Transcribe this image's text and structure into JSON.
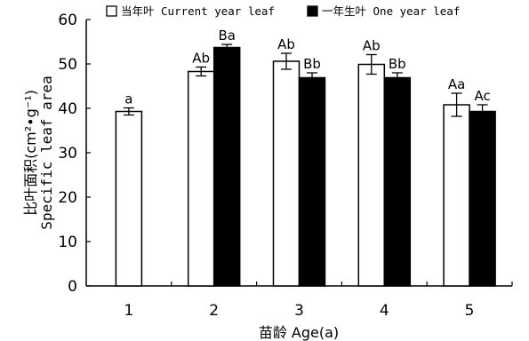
{
  "chart_data": {
    "type": "bar",
    "title": "",
    "xlabel": "苗龄 Age(a)",
    "ylabel_cn": "比叶面积(cm²•g⁻¹)",
    "ylabel_en": "Specific leaf area",
    "ylim": [
      0,
      60
    ],
    "yticks": [
      0,
      10,
      20,
      30,
      40,
      50,
      60
    ],
    "categories": [
      "1",
      "2",
      "3",
      "4",
      "5"
    ],
    "legend_position": "top",
    "series": [
      {
        "name": "当年叶 Current year leaf",
        "fill": "#ffffff",
        "values": [
          39.3,
          48.3,
          50.6,
          49.9,
          40.8
        ],
        "errors": [
          0.8,
          1.0,
          1.8,
          2.2,
          2.6
        ],
        "labels": [
          "a",
          "Ab",
          "Ab",
          "Ab",
          "Aa"
        ]
      },
      {
        "name": "一年生叶 One year leaf",
        "fill": "#000000",
        "values": [
          null,
          53.7,
          46.9,
          46.9,
          39.3
        ],
        "errors": [
          null,
          0.7,
          1.1,
          1.1,
          1.5
        ],
        "labels": [
          "",
          "Ba",
          "Bb",
          "Bb",
          "Ac"
        ]
      }
    ]
  }
}
